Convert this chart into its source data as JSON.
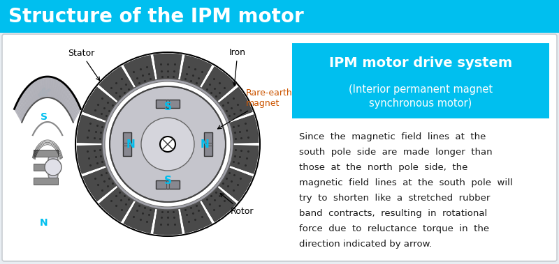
{
  "title": "Structure of the IPM motor",
  "title_bg_color": "#00BFEF",
  "title_text_color": "#FFFFFF",
  "title_fontsize": 20,
  "main_bg_color": "#FFFFFF",
  "box_title": "IPM motor drive system",
  "box_subtitle": "(Interior permanent magnet\nsynchronous motor)",
  "box_bg_color": "#00BFEF",
  "box_text_color": "#FFFFFF",
  "body_text_color": "#1a1a1a",
  "label_stator": "Stator",
  "label_iron": "Iron",
  "label_rare_earth": "Rare-earth\nmagnet",
  "label_rotor": "Rotor",
  "pole_color": "#00BFEF",
  "stator_teeth_color": "#555555",
  "rotor_color": "#C8C8CC",
  "bg_panel": "#F2F5F7"
}
